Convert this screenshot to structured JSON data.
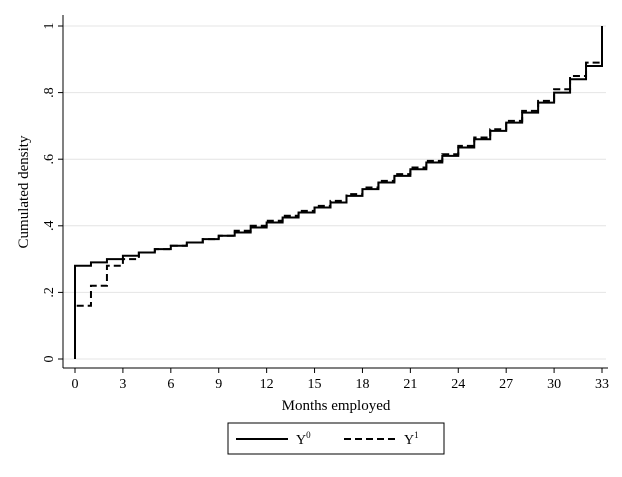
{
  "chart_data": {
    "type": "line",
    "title": "",
    "xlabel": "Months employed",
    "ylabel": "Cumulated density",
    "xlim": [
      0,
      33
    ],
    "ylim": [
      0,
      1
    ],
    "xticks": [
      0,
      3,
      6,
      9,
      12,
      15,
      18,
      21,
      24,
      27,
      30,
      33
    ],
    "yticks": [
      0,
      0.2,
      0.4,
      0.6,
      0.8,
      1
    ],
    "xtick_labels": [
      "0",
      "3",
      "6",
      "9",
      "12",
      "15",
      "18",
      "21",
      "24",
      "27",
      "30",
      "33"
    ],
    "ytick_labels": [
      "0",
      ".2",
      ".4",
      ".6",
      ".8",
      "1"
    ],
    "grid": "horizontal",
    "legend_position": "bottom",
    "step": true,
    "series": [
      {
        "name": "Y",
        "superscript": "0",
        "line_style": "solid",
        "x": [
          0,
          1,
          2,
          3,
          4,
          5,
          6,
          7,
          8,
          9,
          10,
          11,
          12,
          13,
          14,
          15,
          16,
          17,
          18,
          19,
          20,
          21,
          22,
          23,
          24,
          25,
          26,
          27,
          28,
          29,
          30,
          31,
          32,
          33
        ],
        "values": [
          0.28,
          0.29,
          0.3,
          0.31,
          0.32,
          0.33,
          0.34,
          0.35,
          0.36,
          0.37,
          0.38,
          0.395,
          0.41,
          0.425,
          0.44,
          0.455,
          0.47,
          0.49,
          0.51,
          0.53,
          0.55,
          0.57,
          0.59,
          0.61,
          0.635,
          0.66,
          0.685,
          0.71,
          0.74,
          0.77,
          0.8,
          0.84,
          0.88,
          1.0
        ]
      },
      {
        "name": "Y",
        "superscript": "1",
        "line_style": "dashed",
        "x": [
          0,
          1,
          2,
          3,
          4,
          5,
          6,
          7,
          8,
          9,
          10,
          11,
          12,
          13,
          14,
          15,
          16,
          17,
          18,
          19,
          20,
          21,
          22,
          23,
          24,
          25,
          26,
          27,
          28,
          29,
          30,
          31,
          32,
          33
        ],
        "values": [
          0.16,
          0.22,
          0.28,
          0.3,
          0.32,
          0.33,
          0.34,
          0.35,
          0.36,
          0.37,
          0.385,
          0.4,
          0.415,
          0.43,
          0.445,
          0.46,
          0.475,
          0.495,
          0.515,
          0.535,
          0.555,
          0.575,
          0.595,
          0.615,
          0.64,
          0.665,
          0.69,
          0.715,
          0.745,
          0.775,
          0.81,
          0.85,
          0.89,
          1.0
        ]
      }
    ]
  }
}
